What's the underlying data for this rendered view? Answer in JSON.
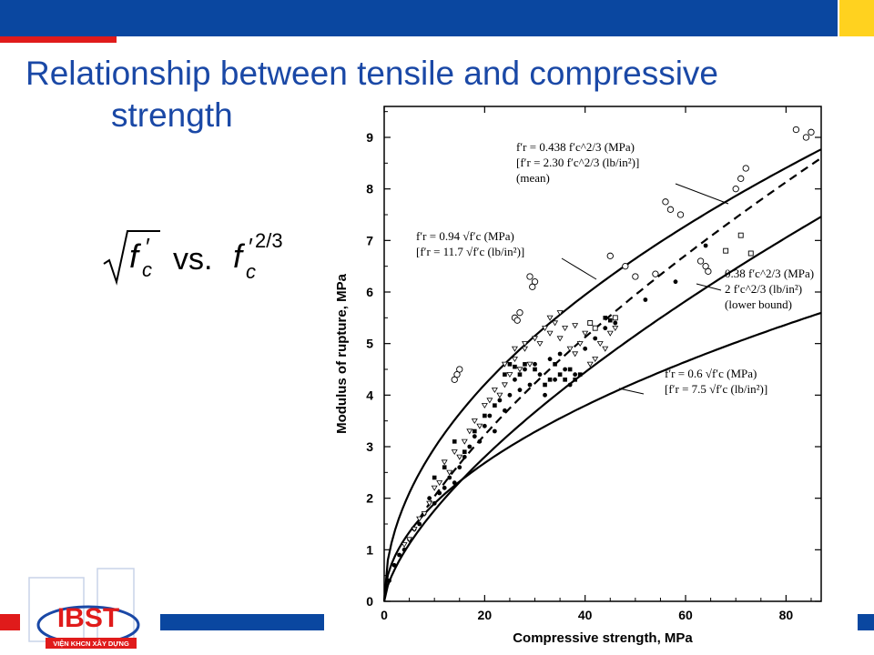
{
  "slide": {
    "title_line1": "Relationship between tensile and compressive",
    "title_line2": "strength",
    "formula_vs": "vs.",
    "colors": {
      "primary": "#0a47a0",
      "accent_red": "#e01b1b",
      "accent_yellow": "#ffd21f",
      "title": "#1a48a6"
    }
  },
  "logo": {
    "text": "VIỆN KHCN XÂY DỰNG",
    "letters": "IBST"
  },
  "chart_data": {
    "type": "scatter",
    "xlabel": "Compressive strength, MPa",
    "ylabel": "Modulus of rupture, MPa",
    "xlim": [
      0,
      87
    ],
    "ylim": [
      0,
      9.6
    ],
    "xticks": [
      0,
      20,
      40,
      60,
      80
    ],
    "yticks": [
      0,
      1,
      2,
      3,
      4,
      5,
      6,
      7,
      8,
      9
    ],
    "grid": false,
    "curves": [
      {
        "id": "mean",
        "style": "dashed",
        "coef": 0.438,
        "power": "2/3",
        "x_start": 7,
        "x_end": 87
      },
      {
        "id": "sqrt094",
        "style": "solid",
        "coef": 0.94,
        "power": "1/2",
        "x_start": 0,
        "x_end": 87
      },
      {
        "id": "lower",
        "style": "solid",
        "coef": 0.38,
        "power": "2/3",
        "x_start": 0,
        "x_end": 87
      },
      {
        "id": "sqrt06",
        "style": "solid",
        "coef": 0.6,
        "power": "1/2",
        "x_start": 0,
        "x_end": 87
      }
    ],
    "annotations": [
      {
        "id": "a1",
        "lines": [
          "f′r = 0.438 f′c^2/3 (MPa)",
          "[f′r = 2.30 f′c^2/3 (lb/in²)]",
          "(mean)"
        ]
      },
      {
        "id": "a2",
        "lines": [
          "f′r = 0.94 √f′c (MPa)",
          "[f′r = 11.7 √f′c (lb/in²)]"
        ]
      },
      {
        "id": "a3",
        "lines": [
          "0.38 f′c^2/3 (MPa)",
          "2 f′c^2/3 (lb/in²)",
          "(lower bound)"
        ]
      },
      {
        "id": "a4",
        "lines": [
          "f′r = 0.6 √f′c (MPa)",
          "[f′r = 7.5 √f′c (lb/in²)]"
        ]
      }
    ],
    "series": [
      {
        "marker": "circle-open",
        "points": [
          [
            14,
            4.3
          ],
          [
            15,
            4.5
          ],
          [
            14.5,
            4.4
          ],
          [
            26,
            5.5
          ],
          [
            27,
            5.6
          ],
          [
            26.5,
            5.45
          ],
          [
            29,
            6.3
          ],
          [
            30,
            6.2
          ],
          [
            29.5,
            6.1
          ],
          [
            45,
            6.7
          ],
          [
            48,
            6.5
          ],
          [
            50,
            6.3
          ],
          [
            54,
            6.35
          ],
          [
            56,
            7.75
          ],
          [
            57,
            7.6
          ],
          [
            59,
            7.5
          ],
          [
            63,
            6.6
          ],
          [
            64,
            6.5
          ],
          [
            64.5,
            6.4
          ],
          [
            70,
            8.0
          ],
          [
            71,
            8.2
          ],
          [
            72,
            8.4
          ],
          [
            82,
            9.15
          ],
          [
            84,
            9.0
          ],
          [
            85,
            9.1
          ]
        ]
      },
      {
        "marker": "circle-filled",
        "points": [
          [
            1,
            0.4
          ],
          [
            2,
            0.7
          ],
          [
            3,
            0.9
          ],
          [
            4,
            1.0
          ],
          [
            5,
            1.2
          ],
          [
            6,
            1.4
          ],
          [
            7,
            1.5
          ],
          [
            8,
            1.7
          ],
          [
            9,
            2.0
          ],
          [
            10,
            1.9
          ],
          [
            11,
            2.1
          ],
          [
            12,
            2.2
          ],
          [
            13,
            2.4
          ],
          [
            14,
            2.3
          ],
          [
            15,
            2.6
          ],
          [
            16,
            2.8
          ],
          [
            17,
            3.0
          ],
          [
            18,
            3.2
          ],
          [
            19,
            3.1
          ],
          [
            20,
            3.4
          ],
          [
            21,
            3.6
          ],
          [
            22,
            3.3
          ],
          [
            23,
            3.9
          ],
          [
            24,
            3.7
          ],
          [
            25,
            4.0
          ],
          [
            26,
            4.3
          ],
          [
            27,
            4.1
          ],
          [
            28,
            4.5
          ],
          [
            29,
            4.2
          ],
          [
            30,
            4.6
          ],
          [
            31,
            4.4
          ],
          [
            32,
            4.0
          ],
          [
            33,
            4.7
          ],
          [
            34,
            4.3
          ],
          [
            35,
            4.8
          ],
          [
            36,
            4.5
          ],
          [
            37,
            4.2
          ],
          [
            38,
            4.4
          ],
          [
            40,
            4.9
          ],
          [
            42,
            5.1
          ],
          [
            44,
            5.3
          ],
          [
            46,
            5.4
          ],
          [
            52,
            5.85
          ],
          [
            58,
            6.2
          ],
          [
            64,
            6.9
          ]
        ]
      },
      {
        "marker": "square-filled",
        "points": [
          [
            10,
            2.4
          ],
          [
            12,
            2.6
          ],
          [
            14,
            3.1
          ],
          [
            16,
            2.9
          ],
          [
            18,
            3.3
          ],
          [
            20,
            3.6
          ],
          [
            22,
            3.8
          ],
          [
            24,
            4.4
          ],
          [
            25,
            4.6
          ],
          [
            26,
            4.55
          ],
          [
            27,
            4.4
          ],
          [
            28,
            4.6
          ],
          [
            30,
            4.5
          ],
          [
            32,
            4.2
          ],
          [
            33,
            4.3
          ],
          [
            34,
            4.6
          ],
          [
            35,
            4.4
          ],
          [
            36,
            4.3
          ],
          [
            37,
            4.5
          ],
          [
            38,
            4.3
          ],
          [
            39,
            4.4
          ],
          [
            44,
            5.5
          ],
          [
            45,
            5.45
          ]
        ]
      },
      {
        "marker": "square-open",
        "points": [
          [
            41,
            5.4
          ],
          [
            42,
            5.3
          ],
          [
            46,
            5.5
          ],
          [
            68,
            6.8
          ],
          [
            71,
            7.1
          ],
          [
            73,
            6.75
          ]
        ]
      },
      {
        "marker": "triangle-open",
        "points": [
          [
            4,
            1.1
          ],
          [
            5,
            1.2
          ],
          [
            6,
            1.4
          ],
          [
            7,
            1.6
          ],
          [
            8,
            1.7
          ],
          [
            9,
            1.9
          ],
          [
            10,
            2.2
          ],
          [
            11,
            2.3
          ],
          [
            12,
            2.7
          ],
          [
            13,
            2.5
          ],
          [
            14,
            2.9
          ],
          [
            15,
            2.8
          ],
          [
            16,
            3.1
          ],
          [
            17,
            3.3
          ],
          [
            18,
            3.5
          ],
          [
            19,
            3.4
          ],
          [
            20,
            3.8
          ],
          [
            21,
            3.9
          ],
          [
            22,
            4.1
          ],
          [
            23,
            4.0
          ],
          [
            24,
            4.2
          ],
          [
            25,
            4.4
          ],
          [
            26,
            4.7
          ],
          [
            27,
            4.5
          ],
          [
            28,
            4.9
          ],
          [
            29,
            4.6
          ],
          [
            30,
            5.1
          ],
          [
            31,
            5.0
          ],
          [
            32,
            5.3
          ],
          [
            33,
            5.2
          ],
          [
            34,
            5.4
          ],
          [
            35,
            5.1
          ],
          [
            36,
            5.3
          ],
          [
            37,
            4.9
          ],
          [
            38,
            4.8
          ],
          [
            39,
            5.0
          ],
          [
            40,
            5.2
          ],
          [
            41,
            4.6
          ],
          [
            42,
            4.7
          ],
          [
            43,
            5.0
          ],
          [
            44,
            4.9
          ],
          [
            45,
            5.2
          ],
          [
            46,
            5.3
          ],
          [
            33,
            5.5
          ],
          [
            35,
            5.6
          ],
          [
            38,
            5.35
          ],
          [
            24,
            4.6
          ],
          [
            26,
            4.9
          ],
          [
            28,
            5.0
          ]
        ]
      }
    ]
  }
}
